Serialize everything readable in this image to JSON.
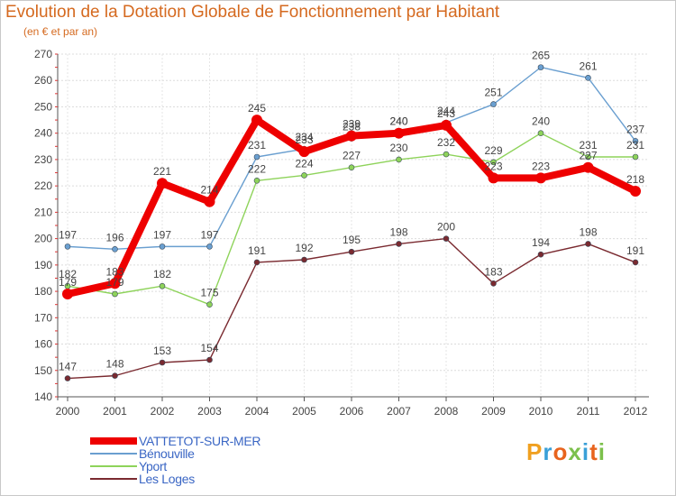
{
  "title": "Evolution de la Dotation Globale de Fonctionnement par Habitant",
  "subtitle": "(en € et par an)",
  "logo_text": "Proxiti",
  "chart_data": {
    "type": "line",
    "title": "Evolution de la Dotation Globale de Fonctionnement par Habitant",
    "ylabel": "(en € et par an)",
    "xlabel": "",
    "ylim": [
      140,
      270
    ],
    "yticks": [
      140,
      150,
      160,
      170,
      180,
      190,
      200,
      210,
      220,
      230,
      240,
      250,
      260,
      270
    ],
    "grid": true,
    "legend": "bottom-left",
    "categories": [
      "2000",
      "2001",
      "2002",
      "2003",
      "2004",
      "2005",
      "2006",
      "2007",
      "2008",
      "2009",
      "2010",
      "2011",
      "2012"
    ],
    "series": [
      {
        "name": "VATTETOT-SUR-MER",
        "color": "#ee0000",
        "emphasis": true,
        "values": [
          179,
          183,
          221,
          214,
          245,
          233,
          239,
          240,
          243,
          223,
          223,
          227,
          218
        ]
      },
      {
        "name": "Bénouville",
        "color": "#6a9fd0",
        "values": [
          197,
          196,
          197,
          197,
          231,
          234,
          238,
          240,
          244,
          251,
          265,
          261,
          237
        ]
      },
      {
        "name": "Yport",
        "color": "#8ed35a",
        "values": [
          182,
          179,
          182,
          175,
          222,
          224,
          227,
          230,
          232,
          229,
          240,
          231,
          231
        ]
      },
      {
        "name": "Les Loges",
        "color": "#7a2a30",
        "values": [
          147,
          148,
          153,
          154,
          191,
          192,
          195,
          198,
          200,
          183,
          194,
          198,
          191
        ]
      }
    ]
  }
}
